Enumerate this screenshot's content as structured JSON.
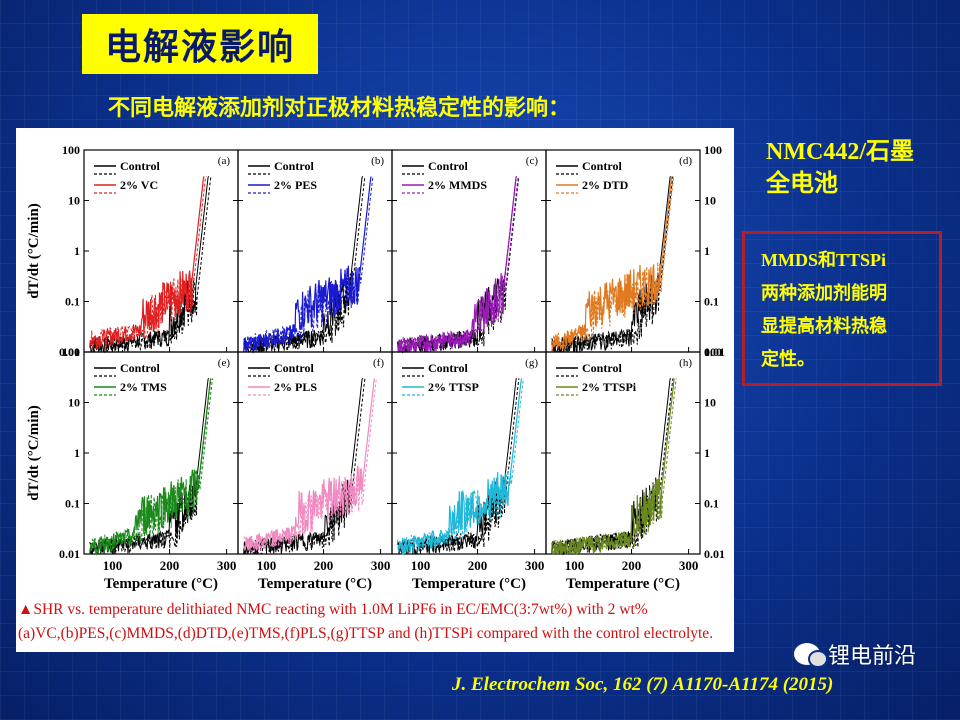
{
  "slide": {
    "title": "电解液影响",
    "subtitle": "不同电解液添加剂对正极材料热稳定性的影响：",
    "cell_label": "NMC442/石墨全电池",
    "cell_label_line1": "NMC442/石墨",
    "cell_label_line2": "全电池",
    "note_lines": [
      "MMDS和TTSPi",
      "两种添加剂能明",
      "显提高材料热稳",
      "定性。"
    ],
    "caption_line1": "▲SHR vs. temperature delithiated NMC reacting with 1.0M LiPF6 in EC/EMC(3:7wt%) with 2 wt%",
    "caption_line2": "(a)VC,(b)PES,(c)MMDS,(d)DTD,(e)TMS,(f)PLS,(g)TTSP and (h)TTSPi compared with the control electrolyte.",
    "journal": "J. Electrochem Soc, 162 (7) A1170-A1174 (2015)",
    "watermark": "锂电前沿"
  },
  "colors": {
    "background": "#0a2f8a",
    "title_bg": "#ffff00",
    "accent_text": "#ffff00",
    "caption_text": "#d01010",
    "note_border": "#b0202a",
    "control": "#000000",
    "VC": "#e02020",
    "PES": "#1a1ad0",
    "MMDS": "#9a1ab8",
    "DTD": "#e07a20",
    "TMS": "#1a8a1a",
    "PLS": "#f08ac0",
    "TTSP": "#20b8d8",
    "TTSPi": "#6a8a20"
  },
  "chart_data": {
    "type": "line",
    "xlabel": "Temperature (°C)",
    "ylabel": "dT/dt (°C/min)",
    "xticks": [
      "100",
      "200",
      "300"
    ],
    "yticks": [
      "0.01",
      "0.1",
      "1",
      "10",
      "100"
    ],
    "xlim": [
      50,
      320
    ],
    "ylim_log": [
      0.01,
      100
    ],
    "panels": [
      {
        "label": "(a)",
        "additive": "2% VC",
        "color": "#e02020",
        "onset": 238,
        "noise_start": 150,
        "base_low": 0.015,
        "base_high": 0.05
      },
      {
        "label": "(b)",
        "additive": "2% PES",
        "color": "#1a1ad0",
        "onset": 262,
        "noise_start": 150,
        "base_low": 0.012,
        "base_high": 0.06
      },
      {
        "label": "(c)",
        "additive": "2% MMDS",
        "color": "#9a1ab8",
        "onset": 245,
        "noise_start": 190,
        "base_low": 0.011,
        "base_high": 0.04
      },
      {
        "label": "(d)",
        "additive": "2% DTD",
        "color": "#e07a20",
        "onset": 250,
        "noise_start": 120,
        "base_low": 0.012,
        "base_high": 0.07
      },
      {
        "label": "(e)",
        "additive": "2% TMS",
        "color": "#1a8a1a",
        "onset": 250,
        "noise_start": 140,
        "base_low": 0.012,
        "base_high": 0.05
      },
      {
        "label": "(f)",
        "additive": "2% PLS",
        "color": "#f08ac0",
        "onset": 268,
        "noise_start": 150,
        "base_low": 0.013,
        "base_high": 0.06
      },
      {
        "label": "(g)",
        "additive": "2% TTSP",
        "color": "#20b8d8",
        "onset": 255,
        "noise_start": 150,
        "base_low": 0.012,
        "base_high": 0.05
      },
      {
        "label": "(h)",
        "additive": "2% TTSPi",
        "color": "#6a8a20",
        "onset": 252,
        "noise_start": 200,
        "base_low": 0.011,
        "base_high": 0.04
      }
    ],
    "control_label": "Control",
    "control_onset": 245
  }
}
